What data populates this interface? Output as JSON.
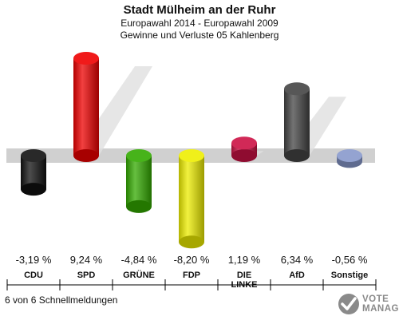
{
  "header": {
    "title": "Stadt Mülheim an der Ruhr",
    "subtitle_1": "Europawahl 2014 - Europawahl 2009",
    "subtitle_2": "Gewinne und Verluste 05 Kahlenberg"
  },
  "footer": {
    "status": "6 von 6 Schnellmeldungen",
    "brand_line_1": "VOTE",
    "brand_line_2": "MANAGER"
  },
  "chart_data": {
    "type": "bar",
    "title": "Stadt Mülheim an der Ruhr",
    "categories": [
      "CDU",
      "SPD",
      "GRÜNE",
      "FDP",
      "DIE LINKE",
      "AfD",
      "Sonstige"
    ],
    "category_lines": [
      [
        "CDU"
      ],
      [
        "SPD"
      ],
      [
        "GRÜNE"
      ],
      [
        "FDP"
      ],
      [
        "DIE",
        "LINKE"
      ],
      [
        "AfD"
      ],
      [
        "Sonstige"
      ]
    ],
    "values": [
      -3.19,
      9.24,
      -4.84,
      -8.2,
      1.19,
      6.34,
      -0.56
    ],
    "value_labels": [
      "-3,19 %",
      "9,24 %",
      "-4,84 %",
      "-8,20 %",
      "1,19 %",
      "6,34 %",
      "-0,56 %"
    ],
    "colors": [
      "#111111",
      "#ee0000",
      "#33aa00",
      "#eeee00",
      "#cc1144",
      "#444444",
      "#8899cc"
    ],
    "ylim": [
      -10,
      10
    ],
    "grid": false,
    "legend": "none"
  }
}
